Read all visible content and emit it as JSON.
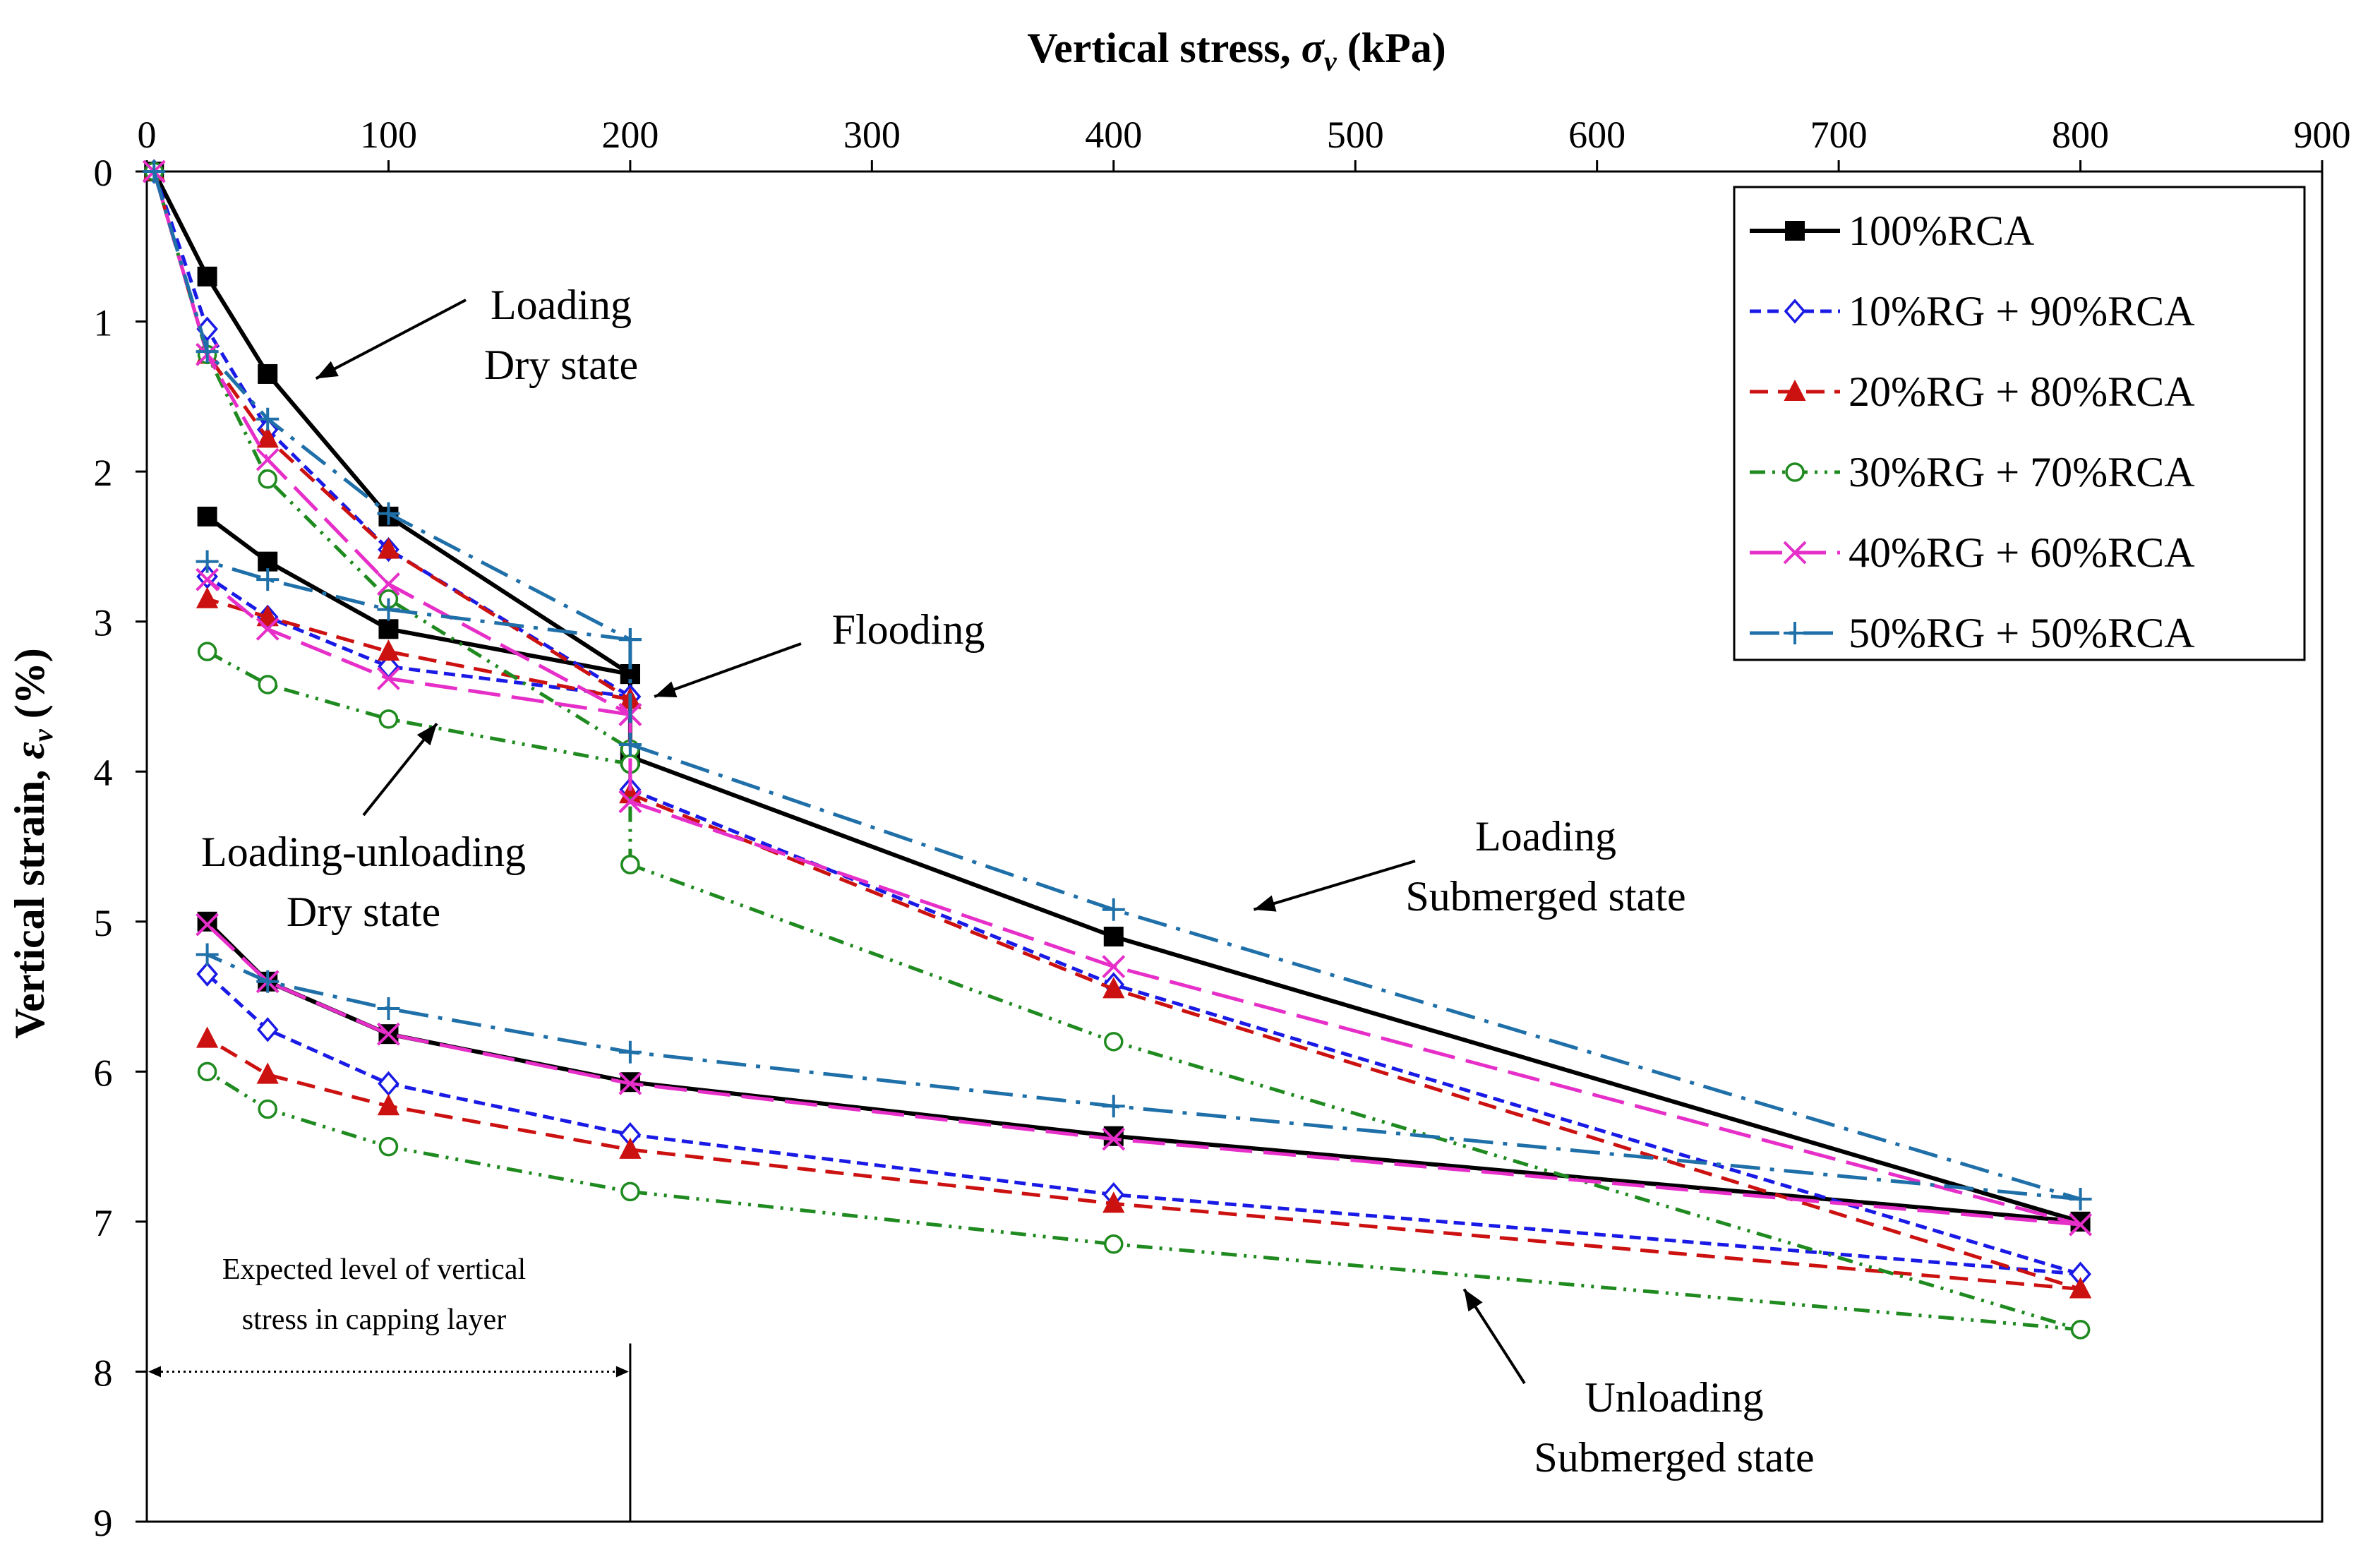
{
  "chart_data": {
    "type": "line",
    "xlabel_prefix": "Vertical stress, ",
    "xlabel_symbol": "σ",
    "xlabel_sub": "v",
    "xlabel_unit": " (kPa)",
    "ylabel_prefix": "Vertical strain, ",
    "ylabel_symbol": "ε",
    "ylabel_sub": "v",
    "ylabel_unit": " (%)",
    "xlim": [
      0,
      900
    ],
    "ylim": [
      0,
      9
    ],
    "y_inverted": true,
    "x_axis_position": "top",
    "grid": false,
    "legend_position": "top-right",
    "x_ticks": [
      "0",
      "100",
      "200",
      "300",
      "400",
      "500",
      "600",
      "700",
      "800",
      "900"
    ],
    "y_ticks": [
      "0",
      "1",
      "2",
      "3",
      "4",
      "5",
      "6",
      "7",
      "8",
      "9"
    ],
    "series": [
      {
        "name": "100%RCA",
        "color": "#000000",
        "marker": "filled-square",
        "dash": "solid",
        "segments": [
          {
            "phase": "Loading - dry",
            "x": [
              3,
              25,
              50,
              100,
              200
            ],
            "y": [
              0,
              0.7,
              1.35,
              2.3,
              3.35
            ]
          },
          {
            "phase": "Loading-unloading - dry",
            "x": [
              200,
              100,
              50,
              25
            ],
            "y": [
              3.35,
              3.05,
              2.6,
              2.3
            ]
          },
          {
            "phase": "Flooding",
            "x": [
              200,
              200
            ],
            "y": [
              3.35,
              3.9
            ]
          },
          {
            "phase": "Loading - submerged",
            "x": [
              200,
              400,
              800
            ],
            "y": [
              3.9,
              5.1,
              7.0
            ]
          },
          {
            "phase": "Unloading - submerged",
            "x": [
              800,
              400,
              200,
              100,
              50,
              25
            ],
            "y": [
              7.0,
              6.43,
              6.07,
              5.75,
              5.4,
              5.0
            ]
          }
        ]
      },
      {
        "name": "10%RG + 90%RCA",
        "color": "#1a1ae6",
        "marker": "open-diamond",
        "dash": "short-dash",
        "segments": [
          {
            "phase": "Loading - dry",
            "x": [
              3,
              25,
              50,
              100,
              200
            ],
            "y": [
              0,
              1.05,
              1.72,
              2.52,
              3.5
            ]
          },
          {
            "phase": "Loading-unloading - dry",
            "x": [
              200,
              100,
              50,
              25
            ],
            "y": [
              3.5,
              3.3,
              2.97,
              2.7
            ]
          },
          {
            "phase": "Flooding",
            "x": [
              200,
              200
            ],
            "y": [
              3.5,
              4.12
            ]
          },
          {
            "phase": "Loading - submerged",
            "x": [
              200,
              400,
              800
            ],
            "y": [
              4.12,
              5.42,
              7.35
            ]
          },
          {
            "phase": "Unloading - submerged",
            "x": [
              800,
              400,
              200,
              100,
              50,
              25
            ],
            "y": [
              7.35,
              6.82,
              6.42,
              6.08,
              5.72,
              5.35
            ]
          }
        ]
      },
      {
        "name": "20%RG + 80%RCA",
        "color": "#cc1111",
        "marker": "filled-triangle",
        "dash": "dash",
        "segments": [
          {
            "phase": "Loading - dry",
            "x": [
              3,
              25,
              50,
              100,
              200
            ],
            "y": [
              0,
              1.22,
              1.78,
              2.52,
              3.52
            ]
          },
          {
            "phase": "Loading-unloading - dry",
            "x": [
              200,
              100,
              50,
              25
            ],
            "y": [
              3.52,
              3.2,
              2.97,
              2.85
            ]
          },
          {
            "phase": "Flooding",
            "x": [
              200,
              200
            ],
            "y": [
              3.52,
              4.15
            ]
          },
          {
            "phase": "Loading - submerged",
            "x": [
              200,
              400,
              800
            ],
            "y": [
              4.15,
              5.45,
              7.45
            ]
          },
          {
            "phase": "Unloading - submerged",
            "x": [
              800,
              400,
              200,
              100,
              50,
              25
            ],
            "y": [
              7.45,
              6.88,
              6.52,
              6.23,
              6.02,
              5.78
            ]
          }
        ]
      },
      {
        "name": "30%RG + 70%RCA",
        "color": "#1f8a1f",
        "marker": "open-circle",
        "dash": "dash-dot-dot",
        "segments": [
          {
            "phase": "Loading - dry",
            "x": [
              3,
              25,
              50,
              100,
              200
            ],
            "y": [
              0,
              1.22,
              2.05,
              2.85,
              3.85
            ]
          },
          {
            "phase": "Loading-unloading - dry",
            "x": [
              200,
              100,
              50,
              25
            ],
            "y": [
              3.95,
              3.65,
              3.42,
              3.2
            ]
          },
          {
            "phase": "Flooding",
            "x": [
              200,
              200
            ],
            "y": [
              3.95,
              4.62
            ]
          },
          {
            "phase": "Loading - submerged",
            "x": [
              200,
              400,
              800
            ],
            "y": [
              4.62,
              5.8,
              7.72
            ]
          },
          {
            "phase": "Unloading - submerged",
            "x": [
              800,
              400,
              200,
              100,
              50,
              25
            ],
            "y": [
              7.72,
              7.15,
              6.8,
              6.5,
              6.25,
              6.0
            ]
          }
        ]
      },
      {
        "name": "40%RG + 60%RCA",
        "color": "#e62ec8",
        "marker": "x-cross",
        "dash": "long-dash",
        "segments": [
          {
            "phase": "Loading - dry",
            "x": [
              3,
              25,
              50,
              100,
              200
            ],
            "y": [
              0,
              1.22,
              1.92,
              2.75,
              3.62
            ]
          },
          {
            "phase": "Loading-unloading - dry",
            "x": [
              200,
              100,
              50,
              25
            ],
            "y": [
              3.62,
              3.38,
              3.05,
              2.72
            ]
          },
          {
            "phase": "Flooding",
            "x": [
              200,
              200
            ],
            "y": [
              3.62,
              4.2
            ]
          },
          {
            "phase": "Loading - submerged",
            "x": [
              200,
              400,
              800
            ],
            "y": [
              4.2,
              5.3,
              7.02
            ]
          },
          {
            "phase": "Unloading - submerged",
            "x": [
              800,
              400,
              200,
              100,
              50,
              25
            ],
            "y": [
              7.02,
              6.45,
              6.08,
              5.75,
              5.4,
              5.02
            ]
          }
        ]
      },
      {
        "name": "50%RG + 50%RCA",
        "color": "#1f6fa8",
        "marker": "plus",
        "dash": "long-dash-dot",
        "segments": [
          {
            "phase": "Loading - dry",
            "x": [
              3,
              25,
              50,
              100,
              200
            ],
            "y": [
              0,
              1.2,
              1.65,
              2.28,
              3.12
            ]
          },
          {
            "phase": "Loading-unloading - dry",
            "x": [
              200,
              100,
              50,
              25
            ],
            "y": [
              3.12,
              2.92,
              2.72,
              2.6
            ]
          },
          {
            "phase": "Flooding",
            "x": [
              200,
              200
            ],
            "y": [
              3.12,
              3.82
            ]
          },
          {
            "phase": "Loading - submerged",
            "x": [
              200,
              400,
              800
            ],
            "y": [
              3.82,
              4.92,
              6.85
            ]
          },
          {
            "phase": "Unloading - submerged",
            "x": [
              800,
              400,
              200,
              100,
              50,
              25
            ],
            "y": [
              6.85,
              6.23,
              5.87,
              5.58,
              5.4,
              5.22
            ]
          }
        ]
      }
    ],
    "annotations": [
      {
        "lines": [
          "Loading",
          "Dry state"
        ],
        "arrow_to": [
          70,
          1.38
        ]
      },
      {
        "lines": [
          "Flooding"
        ],
        "arrow_to": [
          210,
          3.5
        ]
      },
      {
        "lines": [
          "Loading-unloading",
          "Dry state"
        ],
        "arrow_to": [
          120,
          3.68
        ]
      },
      {
        "lines": [
          "Loading",
          "Submerged state"
        ],
        "arrow_to": [
          458,
          4.92
        ]
      },
      {
        "lines": [
          "Unloading",
          "Submerged state"
        ],
        "arrow_to": [
          545,
          7.45
        ]
      }
    ],
    "capping_note": {
      "lines": [
        "Expected level of vertical",
        "stress in capping layer"
      ],
      "x_range": [
        0,
        200
      ],
      "y": 8
    }
  }
}
